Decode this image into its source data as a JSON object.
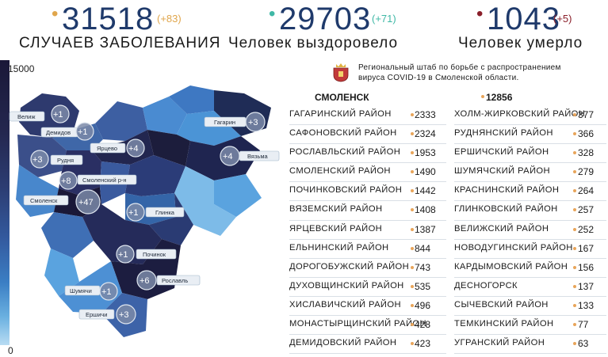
{
  "header": {
    "cases": {
      "value": "31518",
      "delta": "(+83)",
      "label": "Случаев заболевания",
      "dot_color": "#e0a64c",
      "delta_color": "#e0a64c"
    },
    "recovered": {
      "value": "29703",
      "delta": "(+71)",
      "label": "Человек выздоровело",
      "dot_color": "#3fb8a6",
      "delta_color": "#3fb8a6"
    },
    "deaths": {
      "value": "1043",
      "delta": "(+5)",
      "label": "Человек умерло",
      "dot_color": "#8a1f2a",
      "delta_color": "#8a1f2a"
    }
  },
  "scale": {
    "max_label": "15000",
    "min_label": "0"
  },
  "headquarters": {
    "text_line1": "Региональный штаб по борьбе с распространением",
    "text_line2": "вируса  COVID-19 в Смоленской области."
  },
  "city": {
    "name": "Смоленск",
    "value": "12856"
  },
  "districts_left": [
    {
      "name": "Гагаринский район",
      "value": "2333"
    },
    {
      "name": "Сафоновский район",
      "value": "2324"
    },
    {
      "name": "Рославльский район",
      "value": "1953"
    },
    {
      "name": "Смоленский район",
      "value": "1490"
    },
    {
      "name": "Починковский район",
      "value": "1442"
    },
    {
      "name": "Вяземский район",
      "value": "1408"
    },
    {
      "name": "Ярцевский район",
      "value": "1387"
    },
    {
      "name": "Ельнинский район",
      "value": "844"
    },
    {
      "name": "Дорогобужский район",
      "value": "743"
    },
    {
      "name": "Духовщинский район",
      "value": "535"
    },
    {
      "name": "Хиславичский район",
      "value": "496"
    },
    {
      "name": "Монастырщинский район",
      "value": "428"
    },
    {
      "name": "Демидовский район",
      "value": "423"
    }
  ],
  "districts_right": [
    {
      "name": "Холм-Жирковский район",
      "value": "377"
    },
    {
      "name": "Руднянский район",
      "value": "366"
    },
    {
      "name": "Ершичский район",
      "value": "328"
    },
    {
      "name": "Шумячский район",
      "value": "279"
    },
    {
      "name": "Краснинский район",
      "value": "264"
    },
    {
      "name": "Глинковский район",
      "value": "257"
    },
    {
      "name": "Велижский район",
      "value": "252"
    },
    {
      "name": "Новодугинский район",
      "value": "167"
    },
    {
      "name": "Кардымовский район",
      "value": "156"
    },
    {
      "name": "Десногорск",
      "value": "137"
    },
    {
      "name": "Сычевский район",
      "value": "133"
    },
    {
      "name": "Темкинский район",
      "value": "77"
    },
    {
      "name": "Угранский район",
      "value": "63"
    }
  ],
  "map": {
    "labels": {
      "velizh": "Велиж",
      "demidov": "Демидов",
      "yartsevo": "Ярцево",
      "rudnya": "Рудня",
      "smolensk_r": "Смоленский р-н",
      "smolensk": "Смоленск",
      "glinka": "Глинка",
      "gagarin": "Гагарин",
      "vyazma": "Вязьма",
      "pochinok": "Починок",
      "roslavl": "Рославль",
      "shumyachi": "Шумячи",
      "ershichi": "Ершичи"
    },
    "bubbles": {
      "velizh": "+1",
      "demidov": "+1",
      "yartsevo": "+4",
      "rudnya": "+3",
      "smolensk_r": "+8",
      "smolensk": "+47",
      "glinka": "+1",
      "gagarin": "+3",
      "vyazma": "+4",
      "pochinok": "+1",
      "roslavl": "+6",
      "shumyachi": "+1",
      "ershichi": "+3"
    }
  }
}
